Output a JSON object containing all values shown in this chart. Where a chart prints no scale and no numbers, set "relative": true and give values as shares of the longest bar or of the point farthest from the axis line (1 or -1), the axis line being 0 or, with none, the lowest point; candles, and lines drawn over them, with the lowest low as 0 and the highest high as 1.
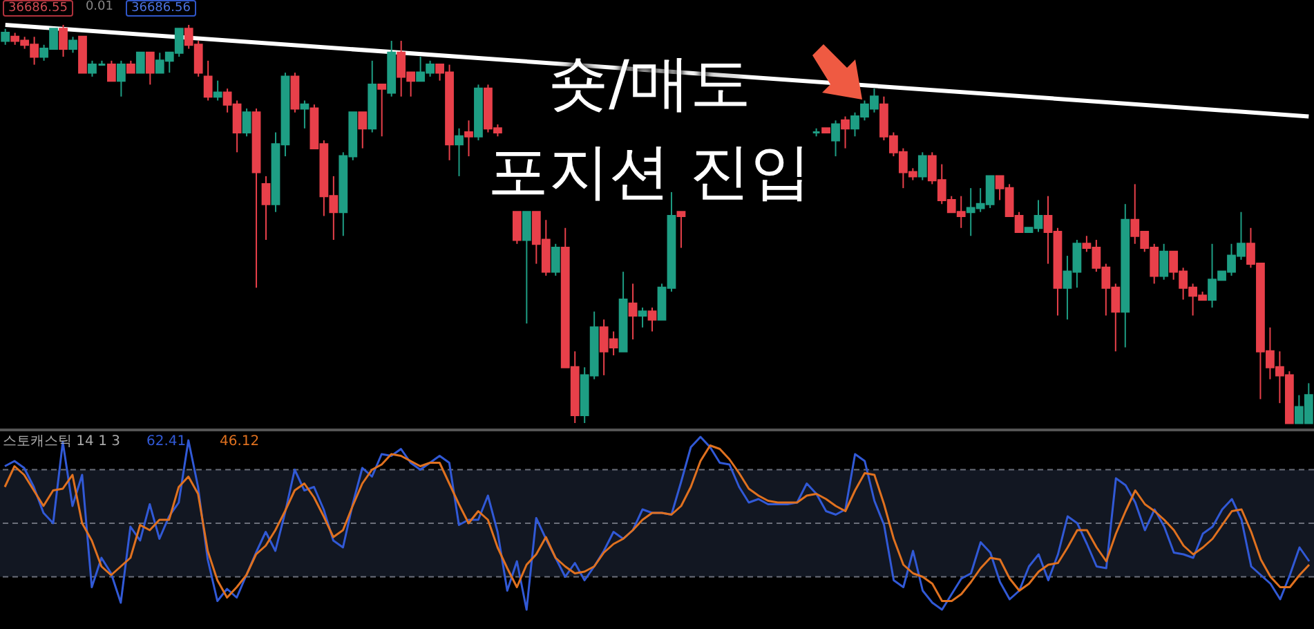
{
  "chart_data": [
    {
      "type": "candlestick",
      "relative": true,
      "categories": [
        null,
        null,
        null,
        null,
        null,
        null,
        null,
        null,
        null,
        null,
        null,
        null,
        null,
        null,
        null,
        null,
        null,
        null,
        null,
        null,
        null,
        null,
        null,
        null,
        null,
        null,
        null,
        null,
        null,
        null,
        null,
        null,
        null,
        null,
        null,
        null,
        null,
        null,
        null,
        null,
        null,
        null,
        null,
        null,
        null,
        null,
        null,
        null,
        null,
        null,
        null,
        null,
        null,
        null,
        null,
        null,
        null,
        null,
        null,
        null,
        null,
        null,
        null,
        null,
        null,
        null,
        null,
        null,
        null,
        null,
        null,
        null,
        null,
        null,
        null,
        null,
        null,
        null,
        null,
        null,
        null,
        null,
        null,
        null,
        null,
        null,
        null,
        null,
        null,
        null,
        null,
        null,
        null,
        null,
        null,
        null,
        null,
        null,
        null,
        null,
        null,
        null,
        null,
        null,
        null,
        null,
        null,
        null,
        null,
        null,
        null,
        null,
        null,
        null,
        null,
        null,
        null,
        null,
        null,
        null,
        null,
        null,
        null,
        null,
        null,
        null,
        null,
        null,
        null,
        null,
        null,
        null,
        null,
        null,
        null,
        null
      ],
      "ohlc": [
        [
          0.96,
          0.99,
          0.95,
          0.98
        ],
        [
          0.97,
          0.98,
          0.95,
          0.96
        ],
        [
          0.96,
          0.97,
          0.94,
          0.95
        ],
        [
          0.95,
          0.97,
          0.9,
          0.92
        ],
        [
          0.92,
          0.95,
          0.91,
          0.94
        ],
        [
          0.94,
          0.99,
          0.94,
          0.99
        ],
        [
          0.99,
          1.0,
          0.92,
          0.94
        ],
        [
          0.94,
          0.97,
          0.93,
          0.96
        ],
        [
          0.97,
          0.97,
          0.88,
          0.88
        ],
        [
          0.88,
          0.91,
          0.87,
          0.9
        ],
        [
          0.9,
          0.91,
          0.9,
          0.9
        ],
        [
          0.9,
          0.91,
          0.86,
          0.86
        ],
        [
          0.86,
          0.91,
          0.82,
          0.9
        ],
        [
          0.9,
          0.91,
          0.88,
          0.88
        ],
        [
          0.88,
          0.93,
          0.88,
          0.93
        ],
        [
          0.93,
          0.93,
          0.85,
          0.88
        ],
        [
          0.88,
          0.93,
          0.88,
          0.91
        ],
        [
          0.91,
          0.93,
          0.88,
          0.93
        ],
        [
          0.93,
          0.99,
          0.92,
          0.99
        ],
        [
          0.99,
          1.0,
          0.94,
          0.95
        ],
        [
          0.95,
          0.96,
          0.87,
          0.88
        ],
        [
          0.87,
          0.91,
          0.81,
          0.82
        ],
        [
          0.82,
          0.86,
          0.81,
          0.83
        ],
        [
          0.83,
          0.84,
          0.78,
          0.8
        ],
        [
          0.8,
          0.81,
          0.68,
          0.73
        ],
        [
          0.73,
          0.79,
          0.72,
          0.78
        ],
        [
          0.78,
          0.79,
          0.34,
          0.63
        ],
        [
          0.6,
          0.62,
          0.46,
          0.55
        ],
        [
          0.55,
          0.73,
          0.53,
          0.7
        ],
        [
          0.7,
          0.88,
          0.67,
          0.87
        ],
        [
          0.87,
          0.88,
          0.78,
          0.79
        ],
        [
          0.79,
          0.81,
          0.74,
          0.8
        ],
        [
          0.79,
          0.8,
          0.69,
          0.69
        ],
        [
          0.7,
          0.71,
          0.52,
          0.57
        ],
        [
          0.57,
          0.62,
          0.46,
          0.53
        ],
        [
          0.53,
          0.68,
          0.47,
          0.67
        ],
        [
          0.67,
          0.78,
          0.66,
          0.78
        ],
        [
          0.78,
          0.78,
          0.69,
          0.74
        ],
        [
          0.74,
          0.91,
          0.73,
          0.85
        ],
        [
          0.85,
          0.85,
          0.72,
          0.84
        ],
        [
          0.83,
          0.96,
          0.82,
          0.93
        ],
        [
          0.93,
          0.96,
          0.82,
          0.87
        ],
        [
          0.88,
          0.88,
          0.82,
          0.86
        ],
        [
          0.86,
          0.92,
          0.86,
          0.88
        ],
        [
          0.88,
          0.91,
          0.87,
          0.9
        ],
        [
          0.9,
          0.9,
          0.86,
          0.88
        ],
        [
          0.88,
          0.9,
          0.66,
          0.7
        ],
        [
          0.7,
          0.74,
          0.62,
          0.72
        ],
        [
          0.73,
          0.76,
          0.67,
          0.72
        ],
        [
          0.72,
          0.85,
          0.71,
          0.84
        ],
        [
          0.84,
          0.85,
          0.73,
          0.74
        ],
        [
          0.74,
          0.75,
          0.72,
          0.73
        ],
        null,
        [
          0.53,
          0.53,
          0.45,
          0.46
        ],
        [
          0.46,
          0.53,
          0.25,
          0.53
        ],
        [
          0.53,
          0.53,
          0.4,
          0.45
        ],
        [
          0.46,
          0.51,
          0.37,
          0.38
        ],
        [
          0.38,
          0.45,
          0.37,
          0.44
        ],
        [
          0.44,
          0.49,
          0.14,
          0.14
        ],
        [
          0.14,
          0.18,
          0,
          0.02
        ],
        [
          0.02,
          0.14,
          0,
          0.12
        ],
        [
          0.12,
          0.28,
          0.11,
          0.24
        ],
        [
          0.24,
          0.26,
          0.12,
          0.18
        ],
        [
          0.21,
          0.23,
          0.17,
          0.19
        ],
        [
          0.18,
          0.38,
          0.18,
          0.31
        ],
        [
          0.3,
          0.35,
          0.21,
          0.27
        ],
        [
          0.27,
          0.29,
          0.24,
          0.28
        ],
        [
          0.28,
          0.29,
          0.23,
          0.26
        ],
        [
          0.26,
          0.35,
          0.26,
          0.34
        ],
        [
          0.34,
          0.58,
          0.33,
          0.52
        ],
        [
          0.53,
          0.53,
          0.44,
          0.52
        ],
        null,
        null,
        null,
        null,
        null,
        null,
        null,
        null,
        null,
        null,
        null,
        null,
        null,
        [
          0.73,
          0.74,
          0.72,
          0.73
        ],
        [
          0.74,
          0.74,
          0.73,
          0.73
        ],
        [
          0.71,
          0.76,
          0.67,
          0.75
        ],
        [
          0.76,
          0.77,
          0.69,
          0.74
        ],
        [
          0.74,
          0.78,
          0.72,
          0.77
        ],
        [
          0.77,
          0.81,
          0.76,
          0.8
        ],
        [
          0.79,
          0.84,
          0.78,
          0.82
        ],
        [
          0.8,
          0.82,
          0.71,
          0.72
        ],
        [
          0.72,
          0.73,
          0.67,
          0.68
        ],
        [
          0.68,
          0.69,
          0.59,
          0.63
        ],
        [
          0.63,
          0.64,
          0.61,
          0.62
        ],
        [
          0.62,
          0.68,
          0.61,
          0.67
        ],
        [
          0.67,
          0.68,
          0.6,
          0.61
        ],
        [
          0.61,
          0.65,
          0.55,
          0.56
        ],
        [
          0.56,
          0.57,
          0.53,
          0.53
        ],
        [
          0.53,
          0.57,
          0.49,
          0.52
        ],
        [
          0.53,
          0.59,
          0.47,
          0.54
        ],
        [
          0.54,
          0.59,
          0.53,
          0.55
        ],
        [
          0.55,
          0.62,
          0.54,
          0.62
        ],
        [
          0.62,
          0.62,
          0.56,
          0.59
        ],
        [
          0.59,
          0.6,
          0.52,
          0.52
        ],
        [
          0.52,
          0.53,
          0.48,
          0.48
        ],
        [
          0.48,
          0.49,
          0.48,
          0.49
        ],
        [
          0.49,
          0.56,
          0.48,
          0.52
        ],
        [
          0.52,
          0.57,
          0.4,
          0.48
        ],
        [
          0.48,
          0.49,
          0.27,
          0.34
        ],
        [
          0.34,
          0.42,
          0.26,
          0.38
        ],
        [
          0.38,
          0.46,
          0.34,
          0.45
        ],
        [
          0.45,
          0.47,
          0.43,
          0.44
        ],
        [
          0.44,
          0.46,
          0.38,
          0.39
        ],
        [
          0.39,
          0.4,
          0.27,
          0.34
        ],
        [
          0.34,
          0.35,
          0.18,
          0.28
        ],
        [
          0.28,
          0.55,
          0.19,
          0.51
        ],
        [
          0.51,
          0.6,
          0.45,
          0.47
        ],
        [
          0.48,
          0.48,
          0.43,
          0.44
        ],
        [
          0.44,
          0.45,
          0.35,
          0.37
        ],
        [
          0.37,
          0.45,
          0.36,
          0.43
        ],
        [
          0.43,
          0.43,
          0.36,
          0.38
        ],
        [
          0.38,
          0.39,
          0.31,
          0.34
        ],
        [
          0.34,
          0.35,
          0.27,
          0.32
        ],
        [
          0.32,
          0.33,
          0.31,
          0.31
        ],
        [
          0.31,
          0.45,
          0.29,
          0.36
        ],
        [
          0.36,
          0.38,
          0.36,
          0.38
        ],
        [
          0.38,
          0.45,
          0.37,
          0.42
        ],
        [
          0.42,
          0.53,
          0.41,
          0.45
        ],
        [
          0.45,
          0.49,
          0.39,
          0.4
        ],
        [
          0.4,
          0.4,
          0.06,
          0.18
        ],
        [
          0.18,
          0.24,
          0.11,
          0.14
        ],
        [
          0.14,
          0.18,
          0.05,
          0.12
        ],
        [
          0.12,
          0.13,
          0,
          0
        ],
        [
          0,
          0.07,
          0,
          0.04
        ],
        [
          0,
          0.1,
          0,
          0.07
        ]
      ],
      "series": [
        {
          "type": "line",
          "color": "#ffffff",
          "values": [
            1.0,
            null,
            null,
            null,
            null,
            null,
            null,
            null,
            null,
            null,
            null,
            null,
            null,
            null,
            null,
            null,
            null,
            null,
            null,
            null,
            null,
            null,
            null,
            null,
            null,
            null,
            null,
            null,
            null,
            null,
            null,
            null,
            null,
            null,
            null,
            null,
            null,
            null,
            null,
            null,
            null,
            null,
            null,
            null,
            null,
            null,
            null,
            null,
            null,
            null,
            null,
            null,
            null,
            null,
            null,
            null,
            null,
            null,
            null,
            null,
            null,
            null,
            null,
            null,
            null,
            null,
            null,
            null,
            null,
            null,
            null,
            null,
            null,
            null,
            null,
            null,
            null,
            null,
            null,
            null,
            null,
            null,
            null,
            null,
            null,
            null,
            null,
            null,
            null,
            null,
            null,
            null,
            null,
            null,
            null,
            null,
            null,
            null,
            null,
            null,
            null,
            null,
            null,
            null,
            null,
            null,
            null,
            null,
            null,
            null,
            null,
            null,
            null,
            null,
            null,
            null,
            null,
            null,
            null,
            null,
            null,
            null,
            null,
            null,
            null,
            null,
            null,
            null,
            null,
            null,
            null,
            null,
            null,
            null,
            null,
            0.77
          ]
        }
      ],
      "annotations": [
        "36686.55",
        "0.01",
        "36686.56",
        "숏/매도",
        "포지션 진입"
      ]
    },
    {
      "type": "line",
      "relative": true,
      "legend_title": "스토캐스틱 14 1 3",
      "legend": "top left",
      "categories": [
        null,
        null,
        null,
        null,
        null,
        null,
        null,
        null,
        null,
        null,
        null,
        null,
        null,
        null,
        null,
        null,
        null,
        null,
        null,
        null,
        null,
        null,
        null,
        null,
        null,
        null,
        null,
        null,
        null,
        null,
        null,
        null,
        null,
        null,
        null,
        null,
        null,
        null,
        null,
        null,
        null,
        null,
        null,
        null,
        null,
        null,
        null,
        null,
        null,
        null,
        null,
        null,
        null,
        null,
        null,
        null,
        null,
        null,
        null,
        null,
        null,
        null,
        null,
        null,
        null,
        null,
        null,
        null,
        null,
        null,
        null,
        null,
        null,
        null,
        null,
        null,
        null,
        null,
        null,
        null,
        null,
        null,
        null,
        null,
        null,
        null,
        null,
        null,
        null,
        null,
        null,
        null,
        null,
        null,
        null,
        null,
        null,
        null,
        null,
        null,
        null,
        null,
        null,
        null,
        null,
        null,
        null,
        null,
        null,
        null,
        null,
        null,
        null,
        null,
        null,
        null,
        null,
        null,
        null,
        null,
        null,
        null,
        null,
        null,
        null,
        null,
        null,
        null,
        null,
        null,
        null,
        null,
        null,
        null,
        null,
        null
      ],
      "series": [
        {
          "name": "62.41",
          "color": "#3159d6",
          "values": [
            0.83,
            0.86,
            0.82,
            0.71,
            0.56,
            0.5,
            0.97,
            0.6,
            0.78,
            0.13,
            0.3,
            0.21,
            0.04,
            0.48,
            0.4,
            0.61,
            0.41,
            0.54,
            0.62,
            0.98,
            0.71,
            0.29,
            0.05,
            0.12,
            0.07,
            0.2,
            0.33,
            0.45,
            0.34,
            0.56,
            0.81,
            0.69,
            0.71,
            0.58,
            0.4,
            0.36,
            0.61,
            0.82,
            0.77,
            0.9,
            0.89,
            0.93,
            0.85,
            0.81,
            0.85,
            0.89,
            0.85,
            0.49,
            0.52,
            0.52,
            0.66,
            0.45,
            0.11,
            0.28,
            0.0,
            0.53,
            0.41,
            0.3,
            0.19,
            0.27,
            0.17,
            0.25,
            0.34,
            0.45,
            0.41,
            0.46,
            0.58,
            0.56,
            0.56,
            0.55,
            0.74,
            0.94,
            1.0,
            0.94,
            0.85,
            0.84,
            0.71,
            0.62,
            0.64,
            0.61,
            0.61,
            0.61,
            0.62,
            0.73,
            0.67,
            0.57,
            0.55,
            0.58,
            0.9,
            0.86,
            0.63,
            0.49,
            0.17,
            0.13,
            0.34,
            0.11,
            0.04,
            0.0,
            0.09,
            0.18,
            0.21,
            0.39,
            0.33,
            0.16,
            0.06,
            0.11,
            0.25,
            0.32,
            0.17,
            0.32,
            0.54,
            0.5,
            0.38,
            0.25,
            0.24,
            0.76,
            0.72,
            0.62,
            0.46,
            0.58,
            0.48,
            0.33,
            0.32,
            0.3,
            0.44,
            0.48,
            0.58,
            0.64,
            0.52,
            0.25,
            0.2,
            0.15,
            0.06,
            0.2,
            0.36,
            0.28
          ]
        },
        {
          "name": "46.12",
          "color": "#e0711f",
          "values": [
            0.71,
            0.83,
            0.78,
            0.69,
            0.6,
            0.69,
            0.7,
            0.78,
            0.5,
            0.4,
            0.25,
            0.2,
            0.25,
            0.3,
            0.49,
            0.46,
            0.52,
            0.52,
            0.71,
            0.77,
            0.67,
            0.34,
            0.17,
            0.07,
            0.13,
            0.2,
            0.32,
            0.37,
            0.46,
            0.57,
            0.69,
            0.73,
            0.65,
            0.54,
            0.42,
            0.46,
            0.6,
            0.73,
            0.81,
            0.84,
            0.9,
            0.89,
            0.86,
            0.83,
            0.85,
            0.85,
            0.73,
            0.61,
            0.5,
            0.57,
            0.52,
            0.36,
            0.24,
            0.13,
            0.26,
            0.32,
            0.42,
            0.3,
            0.25,
            0.21,
            0.22,
            0.25,
            0.33,
            0.38,
            0.41,
            0.46,
            0.52,
            0.56,
            0.56,
            0.55,
            0.6,
            0.71,
            0.86,
            0.95,
            0.93,
            0.87,
            0.79,
            0.7,
            0.66,
            0.63,
            0.62,
            0.62,
            0.62,
            0.66,
            0.67,
            0.64,
            0.6,
            0.57,
            0.69,
            0.79,
            0.78,
            0.61,
            0.41,
            0.26,
            0.21,
            0.19,
            0.15,
            0.05,
            0.05,
            0.09,
            0.16,
            0.24,
            0.3,
            0.29,
            0.18,
            0.11,
            0.15,
            0.22,
            0.26,
            0.27,
            0.36,
            0.46,
            0.46,
            0.36,
            0.28,
            0.44,
            0.57,
            0.69,
            0.61,
            0.57,
            0.52,
            0.46,
            0.37,
            0.32,
            0.36,
            0.41,
            0.49,
            0.57,
            0.58,
            0.45,
            0.29,
            0.19,
            0.13,
            0.13,
            0.2,
            0.26
          ]
        }
      ],
      "ref_lines": [
        {
          "axis": "y",
          "value": 0.81,
          "color": "#6b6f7a",
          "line_style": "dashed"
        },
        {
          "axis": "y",
          "value": 0.5,
          "color": "#6b6f7a",
          "line_style": "dashed"
        },
        {
          "axis": "y",
          "value": 0.19,
          "color": "#6b6f7a",
          "line_style": "dashed"
        }
      ],
      "bands": [
        {
          "axis": "y",
          "from": 0.19,
          "to": 0.81,
          "color": "#121722"
        }
      ]
    }
  ]
}
